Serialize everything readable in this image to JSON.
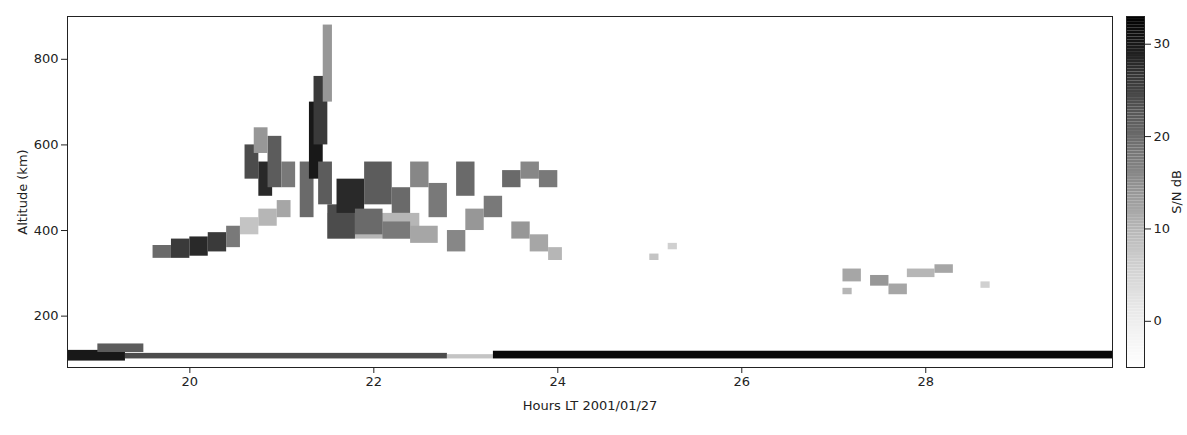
{
  "chart_data": {
    "type": "heatmap",
    "x_label": "Hours LT 2001/01/27",
    "y_label": "Altitude (km)",
    "xlim": [
      18.67,
      30.03
    ],
    "ylim": [
      80,
      900
    ],
    "xticks": [
      20,
      22,
      24,
      26,
      28
    ],
    "yticks": [
      200,
      400,
      600,
      800
    ],
    "color": "greys",
    "colorbar": {
      "label": "S/N dB",
      "range": [
        -5,
        33
      ],
      "ticks": [
        0,
        10,
        20,
        30
      ]
    },
    "cells": [
      {
        "x1": 18.67,
        "x2": 19.3,
        "y1": 95,
        "y2": 120,
        "value": 30
      },
      {
        "x1": 19.0,
        "x2": 19.5,
        "y1": 115,
        "y2": 135,
        "value": 22
      },
      {
        "x1": 19.3,
        "x2": 22.8,
        "y1": 100,
        "y2": 113,
        "value": 24
      },
      {
        "x1": 22.8,
        "x2": 23.3,
        "y1": 100,
        "y2": 110,
        "value": 8
      },
      {
        "x1": 23.3,
        "x2": 30.03,
        "y1": 100,
        "y2": 118,
        "value": 32
      },
      {
        "x1": 19.6,
        "x2": 19.8,
        "y1": 335,
        "y2": 365,
        "value": 20
      },
      {
        "x1": 19.8,
        "x2": 20.0,
        "y1": 335,
        "y2": 380,
        "value": 26
      },
      {
        "x1": 20.0,
        "x2": 20.2,
        "y1": 340,
        "y2": 385,
        "value": 28
      },
      {
        "x1": 20.2,
        "x2": 20.4,
        "y1": 350,
        "y2": 395,
        "value": 26
      },
      {
        "x1": 20.4,
        "x2": 20.55,
        "y1": 360,
        "y2": 410,
        "value": 18
      },
      {
        "x1": 20.55,
        "x2": 20.75,
        "y1": 390,
        "y2": 430,
        "value": 8
      },
      {
        "x1": 20.75,
        "x2": 20.95,
        "y1": 410,
        "y2": 450,
        "value": 10
      },
      {
        "x1": 20.95,
        "x2": 21.1,
        "y1": 430,
        "y2": 470,
        "value": 12
      },
      {
        "x1": 20.6,
        "x2": 20.75,
        "y1": 520,
        "y2": 600,
        "value": 24
      },
      {
        "x1": 20.75,
        "x2": 20.9,
        "y1": 480,
        "y2": 560,
        "value": 28
      },
      {
        "x1": 20.85,
        "x2": 21.0,
        "y1": 500,
        "y2": 620,
        "value": 22
      },
      {
        "x1": 20.7,
        "x2": 20.85,
        "y1": 580,
        "y2": 640,
        "value": 14
      },
      {
        "x1": 21.0,
        "x2": 21.15,
        "y1": 500,
        "y2": 560,
        "value": 18
      },
      {
        "x1": 21.2,
        "x2": 21.35,
        "y1": 430,
        "y2": 560,
        "value": 20
      },
      {
        "x1": 21.3,
        "x2": 21.45,
        "y1": 520,
        "y2": 700,
        "value": 30
      },
      {
        "x1": 21.35,
        "x2": 21.5,
        "y1": 600,
        "y2": 760,
        "value": 26
      },
      {
        "x1": 21.45,
        "x2": 21.55,
        "y1": 700,
        "y2": 880,
        "value": 14
      },
      {
        "x1": 21.4,
        "x2": 21.55,
        "y1": 460,
        "y2": 560,
        "value": 22
      },
      {
        "x1": 21.5,
        "x2": 22.5,
        "y1": 380,
        "y2": 440,
        "value": 10
      },
      {
        "x1": 21.5,
        "x2": 21.8,
        "y1": 380,
        "y2": 460,
        "value": 24
      },
      {
        "x1": 21.6,
        "x2": 21.9,
        "y1": 440,
        "y2": 520,
        "value": 28
      },
      {
        "x1": 21.8,
        "x2": 22.1,
        "y1": 390,
        "y2": 450,
        "value": 20
      },
      {
        "x1": 21.9,
        "x2": 22.2,
        "y1": 460,
        "y2": 560,
        "value": 22
      },
      {
        "x1": 22.1,
        "x2": 22.4,
        "y1": 380,
        "y2": 420,
        "value": 18
      },
      {
        "x1": 22.2,
        "x2": 22.4,
        "y1": 440,
        "y2": 500,
        "value": 20
      },
      {
        "x1": 22.4,
        "x2": 22.6,
        "y1": 500,
        "y2": 560,
        "value": 16
      },
      {
        "x1": 22.4,
        "x2": 22.7,
        "y1": 370,
        "y2": 410,
        "value": 12
      },
      {
        "x1": 22.6,
        "x2": 22.8,
        "y1": 430,
        "y2": 510,
        "value": 18
      },
      {
        "x1": 22.8,
        "x2": 23.0,
        "y1": 350,
        "y2": 400,
        "value": 16
      },
      {
        "x1": 22.9,
        "x2": 23.1,
        "y1": 480,
        "y2": 560,
        "value": 20
      },
      {
        "x1": 23.0,
        "x2": 23.2,
        "y1": 400,
        "y2": 450,
        "value": 14
      },
      {
        "x1": 23.2,
        "x2": 23.4,
        "y1": 430,
        "y2": 480,
        "value": 18
      },
      {
        "x1": 23.4,
        "x2": 23.6,
        "y1": 500,
        "y2": 540,
        "value": 20
      },
      {
        "x1": 23.5,
        "x2": 23.7,
        "y1": 380,
        "y2": 420,
        "value": 14
      },
      {
        "x1": 23.6,
        "x2": 23.8,
        "y1": 520,
        "y2": 560,
        "value": 16
      },
      {
        "x1": 23.7,
        "x2": 23.9,
        "y1": 350,
        "y2": 390,
        "value": 12
      },
      {
        "x1": 23.8,
        "x2": 24.0,
        "y1": 500,
        "y2": 540,
        "value": 18
      },
      {
        "x1": 23.9,
        "x2": 24.05,
        "y1": 330,
        "y2": 360,
        "value": 10
      },
      {
        "x1": 25.0,
        "x2": 25.1,
        "y1": 330,
        "y2": 345,
        "value": 8
      },
      {
        "x1": 25.2,
        "x2": 25.3,
        "y1": 355,
        "y2": 370,
        "value": 6
      },
      {
        "x1": 27.1,
        "x2": 27.3,
        "y1": 280,
        "y2": 310,
        "value": 12
      },
      {
        "x1": 27.1,
        "x2": 27.2,
        "y1": 250,
        "y2": 265,
        "value": 10
      },
      {
        "x1": 27.4,
        "x2": 27.6,
        "y1": 270,
        "y2": 295,
        "value": 14
      },
      {
        "x1": 27.6,
        "x2": 27.8,
        "y1": 250,
        "y2": 275,
        "value": 12
      },
      {
        "x1": 27.8,
        "x2": 28.1,
        "y1": 290,
        "y2": 310,
        "value": 10
      },
      {
        "x1": 28.1,
        "x2": 28.3,
        "y1": 300,
        "y2": 320,
        "value": 12
      },
      {
        "x1": 28.6,
        "x2": 28.7,
        "y1": 265,
        "y2": 280,
        "value": 6
      }
    ]
  }
}
